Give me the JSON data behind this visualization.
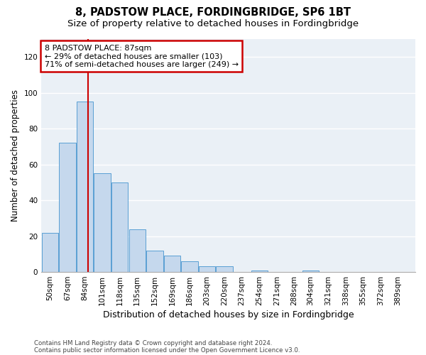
{
  "title": "8, PADSTOW PLACE, FORDINGBRIDGE, SP6 1BT",
  "subtitle": "Size of property relative to detached houses in Fordingbridge",
  "xlabel": "Distribution of detached houses by size in Fordingbridge",
  "ylabel": "Number of detached properties",
  "footnote1": "Contains HM Land Registry data © Crown copyright and database right 2024.",
  "footnote2": "Contains public sector information licensed under the Open Government Licence v3.0.",
  "bins": [
    50,
    67,
    84,
    101,
    118,
    135,
    152,
    169,
    186,
    203,
    220,
    237,
    254,
    271,
    288,
    304,
    321,
    338,
    355,
    372,
    389
  ],
  "values": [
    22,
    72,
    95,
    55,
    50,
    24,
    12,
    9,
    6,
    3,
    3,
    0,
    1,
    0,
    0,
    1,
    0,
    0,
    0,
    0,
    0
  ],
  "bar_color": "#c5d8ed",
  "bar_edge_color": "#5a9fd4",
  "property_size": 87,
  "vline_color": "#cc0000",
  "annotation_line1": "8 PADSTOW PLACE: 87sqm",
  "annotation_line2": "← 29% of detached houses are smaller (103)",
  "annotation_line3": "71% of semi-detached houses are larger (249) →",
  "annotation_box_color": "#cc0000",
  "ylim": [
    0,
    130
  ],
  "yticks": [
    0,
    20,
    40,
    60,
    80,
    100,
    120
  ],
  "xlim_left": 41.5,
  "xlim_right": 406,
  "background_color": "#eaf0f6",
  "grid_color": "#ffffff",
  "title_fontsize": 10.5,
  "subtitle_fontsize": 9.5,
  "xlabel_fontsize": 9,
  "ylabel_fontsize": 8.5,
  "tick_fontsize": 7.5,
  "annotation_fontsize": 8
}
